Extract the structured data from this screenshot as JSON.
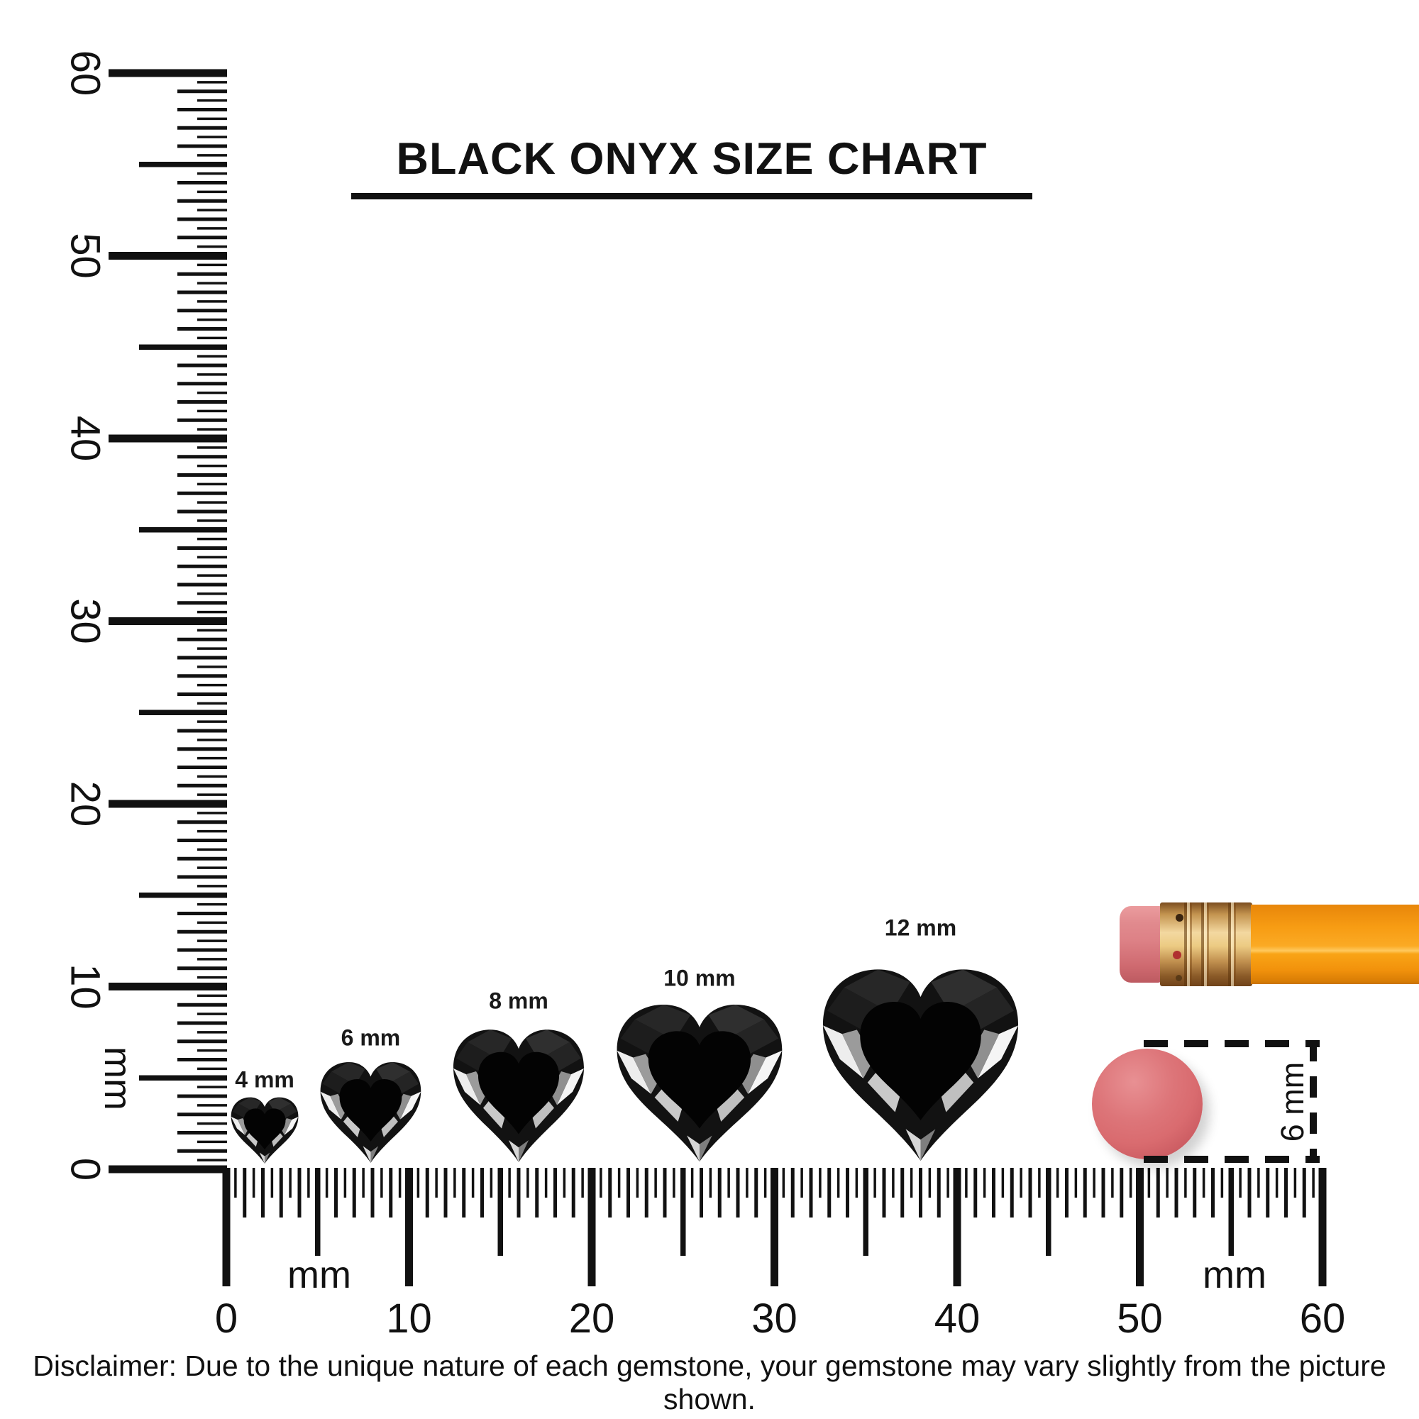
{
  "title": "BLACK ONYX SIZE CHART",
  "disclaimer": "Disclaimer: Due to the unique nature of each gemstone, your gemstone may vary slightly from the picture shown.",
  "colors": {
    "ink": "#111111",
    "gem_black": "#0b0b0b",
    "pencil_orange": "#f79c13",
    "pencil_eraser_pink": "#dd8186",
    "pencil_ferrule_gold": "#e3bd7d",
    "round_eraser_pink": "#d96b6f"
  },
  "chart_data": {
    "type": "size-comparison-diagram",
    "subject": "Black Onyx heart-cut gemstones against mm rulers",
    "unit": "mm",
    "gem_shape": "heart",
    "gems": [
      {
        "label": "4 mm",
        "size_mm": 4,
        "center_mm": 2.1
      },
      {
        "label": "6 mm",
        "size_mm": 6,
        "center_mm": 7.9
      },
      {
        "label": "8 mm",
        "size_mm": 8,
        "center_mm": 16.0
      },
      {
        "label": "10 mm",
        "size_mm": 10,
        "center_mm": 25.9
      },
      {
        "label": "12 mm",
        "size_mm": 12,
        "center_mm": 38.0
      }
    ],
    "vertical_ruler": {
      "min_mm": 0,
      "max_mm": 60,
      "tick_step_mm": 0.5,
      "major_step_mm": 10,
      "major_labels": [
        "0",
        "10",
        "20",
        "30",
        "40",
        "50",
        "60"
      ],
      "unit_label": "mm"
    },
    "horizontal_ruler": {
      "min_mm": 0,
      "max_mm": 60,
      "tick_step_mm": 0.5,
      "major_step_mm": 10,
      "major_labels": [
        "0",
        "10",
        "20",
        "30",
        "40",
        "50",
        "60"
      ],
      "unit_labels": [
        "mm",
        "mm"
      ]
    },
    "reference_objects": [
      {
        "name": "pencil with pink eraser and gold ferrule",
        "position": "right edge"
      },
      {
        "name": "round rubber eraser",
        "diameter_label": "6 mm"
      }
    ]
  }
}
